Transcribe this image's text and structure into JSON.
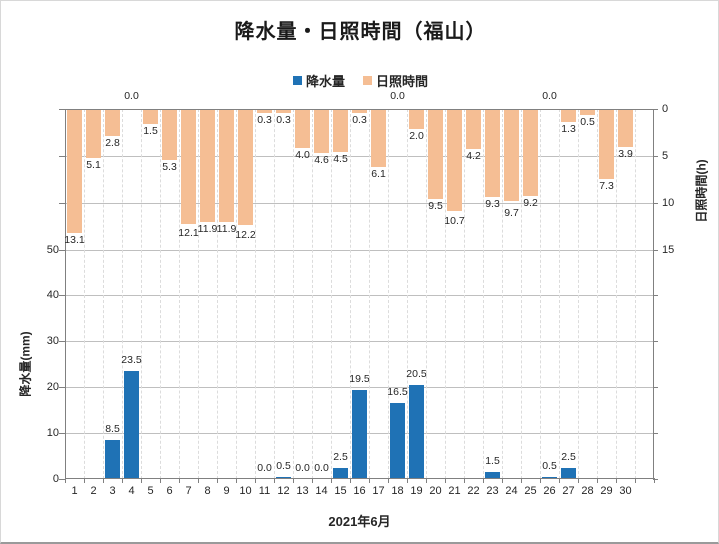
{
  "colors": {
    "precipitation": "#1F72B5",
    "sunshine": "#F5BE94",
    "axis": "#808080",
    "grid": "#BFBFBF",
    "text": "#262626"
  },
  "chart_data": {
    "type": "bar",
    "title": "降水量・日照時間（福山）",
    "x_title": "2021年6月",
    "legend_position": "top",
    "grid": true,
    "categories": [
      "1",
      "2",
      "3",
      "4",
      "5",
      "6",
      "7",
      "8",
      "9",
      "10",
      "11",
      "12",
      "13",
      "14",
      "15",
      "16",
      "17",
      "18",
      "19",
      "20",
      "21",
      "22",
      "23",
      "24",
      "25",
      "26",
      "27",
      "28",
      "29",
      "30"
    ],
    "series": [
      {
        "name": "降水量",
        "unit": "mm",
        "axis": "left",
        "color": "#1F72B5",
        "values": [
          null,
          null,
          8.5,
          23.5,
          null,
          null,
          null,
          null,
          null,
          null,
          0.0,
          0.5,
          0.0,
          0.0,
          2.5,
          19.5,
          null,
          16.5,
          20.5,
          null,
          null,
          null,
          1.5,
          null,
          null,
          0.5,
          2.5,
          null,
          null,
          null
        ]
      },
      {
        "name": "日照時間",
        "unit": "h",
        "axis": "right",
        "color": "#F5BE94",
        "values": [
          13.1,
          5.1,
          2.8,
          0.0,
          1.5,
          5.3,
          12.1,
          11.9,
          11.9,
          12.2,
          0.3,
          0.3,
          4.0,
          4.6,
          4.5,
          0.3,
          6.1,
          0.0,
          2.0,
          9.5,
          10.7,
          4.2,
          9.3,
          9.7,
          9.2,
          0.0,
          1.3,
          0.5,
          7.3,
          3.9
        ]
      }
    ],
    "axes": {
      "left": {
        "title": "降水量(mm)",
        "ticks": [
          0,
          10,
          20,
          30,
          40,
          50
        ],
        "min": 0,
        "max": 50,
        "direction": "up-from-bottom"
      },
      "right": {
        "title": "日照時間(h)",
        "ticks": [
          0,
          5,
          10,
          15
        ],
        "min": 0,
        "max": 15,
        "direction": "down-from-top",
        "inverted": true
      }
    }
  }
}
